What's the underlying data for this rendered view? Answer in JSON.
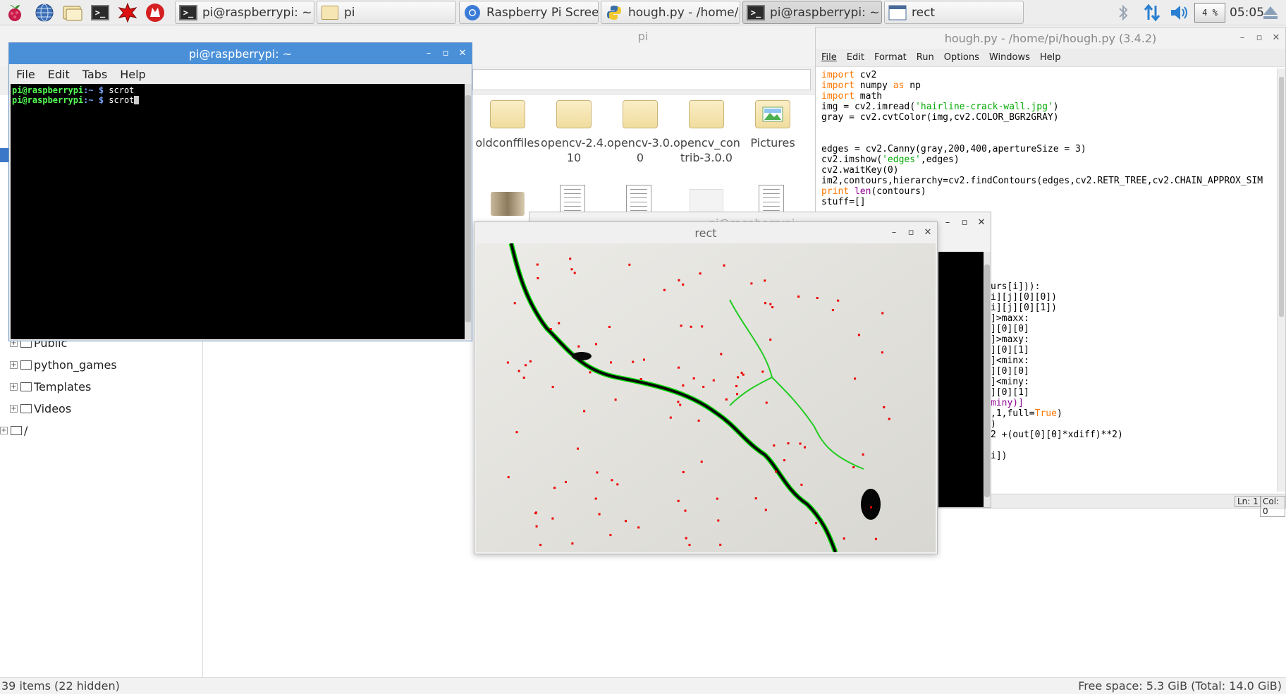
{
  "taskbar": {
    "buttons": [
      {
        "label": "pi@raspberrypi: ~",
        "icon": "terminal-icon"
      },
      {
        "label": "pi",
        "icon": "folder-icon"
      },
      {
        "label": "Raspberry Pi Screen...",
        "icon": "chromium-icon"
      },
      {
        "label": "hough.py - /home/pi...",
        "icon": "python-icon"
      },
      {
        "label": "pi@raspberrypi: ~",
        "icon": "terminal-icon"
      },
      {
        "label": "rect",
        "icon": "window-icon"
      }
    ],
    "cpu": "4 %",
    "clock": "05:05"
  },
  "file_manager": {
    "title": "pi",
    "tree_items": [
      "Public",
      "python_games",
      "Templates",
      "Videos",
      "/"
    ],
    "icons": [
      {
        "label": "oldconffiles"
      },
      {
        "label": "opencv-2.4.\n10"
      },
      {
        "label": "opencv-3.0.\n0"
      },
      {
        "label": "opencv_con\ntrib-3.0.0"
      },
      {
        "label": "Pictures"
      }
    ],
    "status_left": "39 items (22 hidden)",
    "status_right": "Free space: 5.3 GiB (Total: 14.0 GiB)"
  },
  "terminal": {
    "title": "pi@raspberrypi: ~",
    "menu": [
      "File",
      "Edit",
      "Tabs",
      "Help"
    ],
    "prompt_user": "pi@raspberrypi",
    "prompt_rest": ":~ $ ",
    "line1_cmd": "scrot",
    "line2_cmd": "scrot"
  },
  "terminal2": {
    "title": "pi@raspberrypi: ~"
  },
  "idle": {
    "title": "hough.py - /home/pi/hough.py (3.4.2)",
    "menu": [
      "File",
      "Edit",
      "Format",
      "Run",
      "Options",
      "Windows",
      "Help"
    ],
    "code_top": [
      [
        {
          "t": "import",
          "c": "kw"
        },
        {
          "t": " cv2"
        }
      ],
      [
        {
          "t": "import",
          "c": "kw"
        },
        {
          "t": " numpy "
        },
        {
          "t": "as",
          "c": "kw"
        },
        {
          "t": " np"
        }
      ],
      [
        {
          "t": "import",
          "c": "kw"
        },
        {
          "t": " math"
        }
      ],
      [
        {
          "t": "img = cv2.imread("
        },
        {
          "t": "'hairline-crack-wall.jpg'",
          "c": "str"
        },
        {
          "t": ")"
        }
      ],
      [
        {
          "t": "gray = cv2.cvtColor(img,cv2.COLOR_BGR2GRAY)"
        }
      ],
      [
        {
          "t": ""
        }
      ],
      [
        {
          "t": ""
        }
      ],
      [
        {
          "t": "edges = cv2.Canny(gray,200,400,apertureSize = 3)"
        }
      ],
      [
        {
          "t": "cv2.imshow("
        },
        {
          "t": "'edges'",
          "c": "str"
        },
        {
          "t": ",edges)"
        }
      ],
      [
        {
          "t": "cv2.waitKey(0)"
        }
      ],
      [
        {
          "t": "im2,contours,hierarchy=cv2.findContours(edges,cv2.RETR_TREE,cv2.CHAIN_APPROX_SIM"
        }
      ],
      [
        {
          "t": "print",
          "c": "kw"
        },
        {
          "t": " "
        },
        {
          "t": "len",
          "c": "bi"
        },
        {
          "t": "(contours)"
        }
      ],
      [
        {
          "t": "stuff=[]"
        }
      ]
    ],
    "code_right": [
      [
        {
          "t": "urs[i])):"
        }
      ],
      [
        {
          "t": "i][j][0][0])"
        }
      ],
      [
        {
          "t": "i][j][0][1])"
        }
      ],
      [
        {
          "t": "]>maxx:"
        }
      ],
      [
        {
          "t": "][0][0]"
        }
      ],
      [
        {
          "t": "]>maxy:"
        }
      ],
      [
        {
          "t": "][0][1]"
        }
      ],
      [
        {
          "t": "]<minx:"
        }
      ],
      [
        {
          "t": "][0][0]"
        }
      ],
      [
        {
          "t": "]<miny:"
        }
      ],
      [
        {
          "t": "][0][1]"
        }
      ],
      [
        {
          "t": "miny)]",
          "c": "bi"
        }
      ],
      [
        {
          "t": ",1,full="
        },
        {
          "t": "True",
          "c": "kw"
        },
        {
          "t": ")"
        }
      ],
      [
        {
          "t": ")"
        }
      ],
      [
        {
          "t": "2 +(out[0][0]*xdiff)**2)"
        }
      ],
      [
        {
          "t": ""
        }
      ],
      [
        {
          "t": "i])"
        }
      ]
    ],
    "status_ln": "Ln: 1",
    "status_col": "Col: 0"
  },
  "rect_window": {
    "title": "rect"
  },
  "colors": {
    "taskbar_bg": "#ededed",
    "titlebar_active": "#4a90d9",
    "terminal_bg": "#000000",
    "prompt_green": "#55ff55",
    "edge_green": "#00cc00",
    "mark_red": "#ee0000"
  }
}
